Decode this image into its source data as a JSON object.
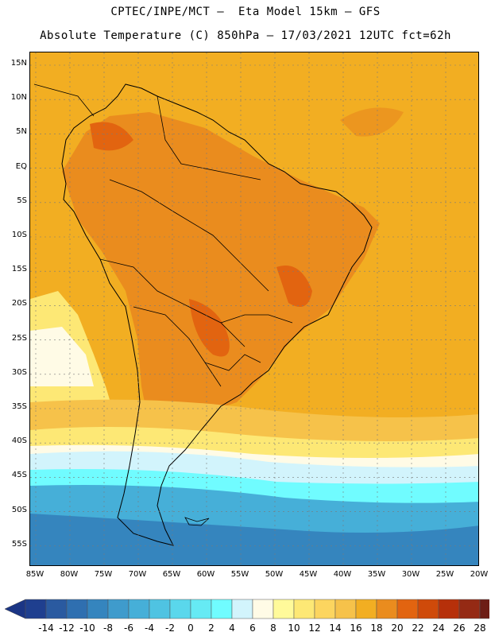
{
  "header": {
    "line1": "CPTEC/INPE/MCT –  Eta Model 15km – GFS",
    "line2": "Absolute Temperature (C) 850hPa – 17/03/2021 12UTC fct=62h"
  },
  "map": {
    "lat_labels": [
      "15N",
      "10N",
      "5N",
      "EQ",
      "5S",
      "10S",
      "15S",
      "20S",
      "25S",
      "30S",
      "35S",
      "40S",
      "45S",
      "50S",
      "55S"
    ],
    "lon_labels": [
      "85W",
      "80W",
      "75W",
      "70W",
      "65W",
      "60W",
      "55W",
      "50W",
      "45W",
      "40W",
      "35W",
      "30W",
      "25W",
      "20W"
    ],
    "grid": "dotted"
  },
  "legend": {
    "labels": [
      "-14",
      "-12",
      "-10",
      "-8",
      "-6",
      "-4",
      "-2",
      "0",
      "2",
      "4",
      "6",
      "8",
      "10",
      "12",
      "14",
      "16",
      "18",
      "20",
      "22",
      "24",
      "26",
      "28"
    ],
    "colors": [
      "#1f3f8f",
      "#2a5aa0",
      "#2f6fb0",
      "#3585be",
      "#3f9bcc",
      "#46afd8",
      "#4fc3e2",
      "#5ad7ec",
      "#66eaf4",
      "#70fcff",
      "#d2f4fc",
      "#fffbe6",
      "#fffa9a",
      "#fde875",
      "#fcd55f",
      "#f6c24a",
      "#f2ae22",
      "#ea8c1e",
      "#e26410",
      "#cf4a0a",
      "#b6300a",
      "#952a14",
      "#6d1d16"
    ],
    "extend_left_color": "#1b3585",
    "extend_right_color": "#6a0018"
  },
  "field_colors": {
    "ocean_warm": "#f2ae22",
    "land_warm": "#ea8c1e",
    "land_hot": "#e26410",
    "mild": "#f6c24a",
    "cool": "#fde875",
    "cold_pale": "#fffbe6",
    "cold": "#d2f4fc",
    "colder": "#70fcff",
    "coldest": "#46afd8",
    "deep": "#3585be"
  }
}
